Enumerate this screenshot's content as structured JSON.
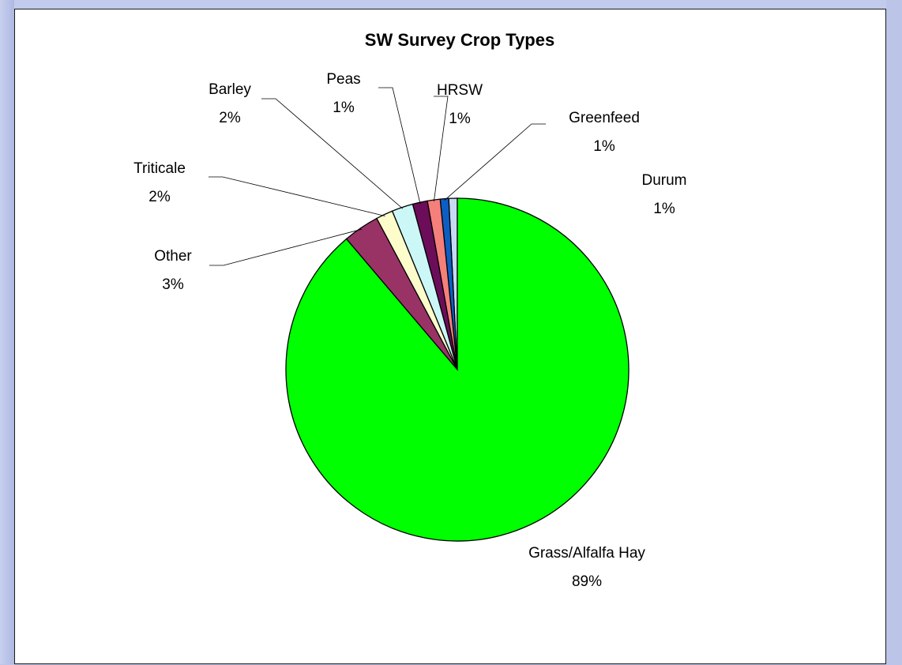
{
  "chart_data": {
    "type": "pie",
    "title": "SW Survey Crop Types",
    "slices": [
      {
        "label": "Durum",
        "percent_label": "1%",
        "value": 0.8,
        "color": "#c7d9f5"
      },
      {
        "label": "Greenfeed",
        "percent_label": "1%",
        "value": 0.8,
        "color": "#0d5ec2"
      },
      {
        "label": "HRSW",
        "percent_label": "1%",
        "value": 1.2,
        "color": "#f57f7a"
      },
      {
        "label": "Peas",
        "percent_label": "1%",
        "value": 1.4,
        "color": "#6b0d59"
      },
      {
        "label": "Barley",
        "percent_label": "2%",
        "value": 2.0,
        "color": "#ccf7f7"
      },
      {
        "label": "Triticale",
        "percent_label": "2%",
        "value": 1.6,
        "color": "#fdfccb"
      },
      {
        "label": "Other",
        "percent_label": "3%",
        "value": 3.4,
        "color": "#993366"
      },
      {
        "label": "Grass/Alfalfa Hay",
        "percent_label": "89%",
        "value": 88.8,
        "color": "#00ff00"
      }
    ]
  }
}
